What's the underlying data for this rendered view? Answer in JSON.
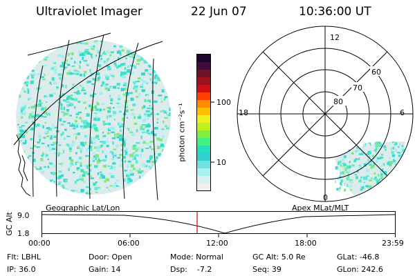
{
  "header": {
    "title": "Ultraviolet Imager",
    "date": "22 Jun 07",
    "time": "10:36:00 UT"
  },
  "colorbar": {
    "unit_label": "photon cm⁻²s⁻¹",
    "tick_labels": [
      "100",
      "10"
    ],
    "colors": [
      "#1a0630",
      "#400a3a",
      "#70102a",
      "#a0101a",
      "#d01010",
      "#ff4000",
      "#ff8c00",
      "#ffc000",
      "#f0f020",
      "#c0f020",
      "#80f040",
      "#40f080",
      "#20e0c0",
      "#30d0d0",
      "#70e0e0",
      "#a8f0f0",
      "#d8f0f0",
      "#f0f0f0"
    ]
  },
  "geo_panel": {
    "label": "Geographic Lat/Lon",
    "aurora_colors": [
      "#40e0c8",
      "#60e8d8",
      "#a0f0f0",
      "#dcecec",
      "#80e880",
      "#30d8d0"
    ]
  },
  "polar_panel": {
    "label": "Apex MLat/MLT",
    "lat_labels": [
      "60",
      "70",
      "80"
    ],
    "mlt_labels": [
      "12",
      "18",
      "6",
      "0"
    ]
  },
  "altitude_plot": {
    "axis_label": "GC Alt",
    "y_ticks": [
      "9.0",
      "1.8"
    ],
    "x_ticks": [
      "00:00",
      "06:00",
      "12:00",
      "18:00",
      "23:59"
    ],
    "current_marker_time": "10:36"
  },
  "info": {
    "flt": "Flt: LBHL",
    "ip": "IP: 36.0",
    "door": "Door: Open",
    "gain": "Gain: 14",
    "mode": "Mode: Normal",
    "dsp": "Dsp:    -7.2",
    "gc_alt": "GC Alt: 5.0 Re",
    "seq": "Seq: 39",
    "glat": "GLat: -46.8",
    "glon": "GLon: 242.6"
  }
}
